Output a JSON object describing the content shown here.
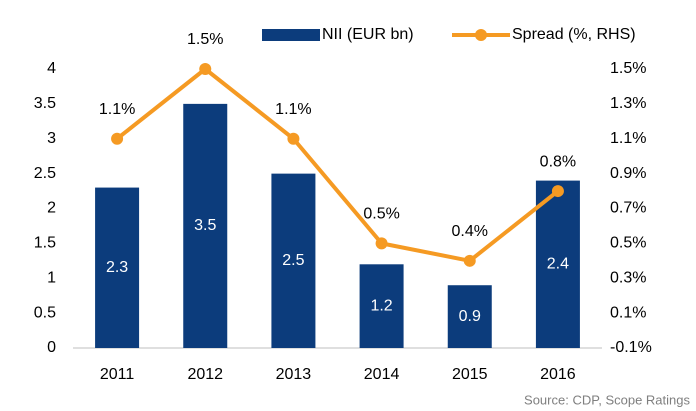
{
  "chart_data": {
    "type": "bar",
    "categories": [
      "2011",
      "2012",
      "2013",
      "2014",
      "2015",
      "2016"
    ],
    "series": [
      {
        "name": "NII (EUR bn)",
        "color": "#0c3c7c",
        "values": [
          2.3,
          3.5,
          2.5,
          1.2,
          0.9,
          2.4
        ]
      },
      {
        "name": "Spread (%, RHS)",
        "type": "line",
        "axis": "y2",
        "color": "#f59a23",
        "values": [
          1.1,
          1.5,
          1.1,
          0.5,
          0.4,
          0.8
        ],
        "value_labels": [
          "1.1%",
          "1.5%",
          "1.1%",
          "0.5%",
          "0.4%",
          "0.8%"
        ]
      }
    ],
    "ylim": [
      0,
      4
    ],
    "yticks": [
      0,
      0.5,
      1,
      1.5,
      2,
      2.5,
      3,
      3.5,
      4
    ],
    "y2lim": [
      -0.1,
      1.5
    ],
    "y2ticks": [
      {
        "value": -0.1,
        "label": "-0.1%"
      },
      {
        "value": 0.1,
        "label": "0.1%"
      },
      {
        "value": 0.3,
        "label": "0.3%"
      },
      {
        "value": 0.5,
        "label": "0.5%"
      },
      {
        "value": 0.7,
        "label": "0.7%"
      },
      {
        "value": 0.9,
        "label": "0.9%"
      },
      {
        "value": 1.1,
        "label": "1.1%"
      },
      {
        "value": 1.3,
        "label": "1.3%"
      },
      {
        "value": 1.5,
        "label": "1.5%"
      }
    ],
    "legend": "top",
    "annotation": "Source: CDP, Scope Ratings"
  }
}
